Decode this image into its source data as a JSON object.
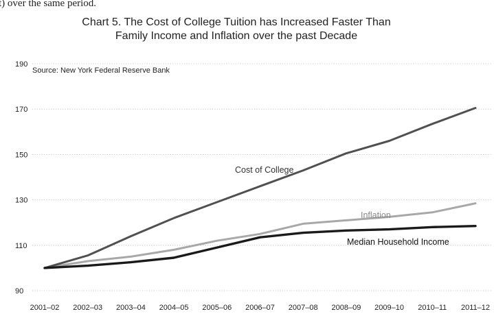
{
  "page_fragment": {
    "text": "t) over the same period."
  },
  "chart_data": {
    "type": "line",
    "title_lines": [
      "Chart 5. The Cost of College Tuition has Increased Faster Than",
      "Family Income and Inflation over the past Decade"
    ],
    "source": "Source: New York Federal Reserve Bank",
    "xlabel": "",
    "ylabel": "",
    "categories": [
      "2001–02",
      "2002–03",
      "2003–04",
      "2004–05",
      "2005–06",
      "2006–07",
      "2007–08",
      "2008–09",
      "2009–10",
      "2010–11",
      "2011–12"
    ],
    "yticks": [
      90,
      110,
      130,
      150,
      170,
      190
    ],
    "ylim": [
      90,
      190
    ],
    "grid": "horizontal dotted",
    "series": [
      {
        "name": "Cost of College",
        "color": "#505050",
        "values": [
          100,
          105.5,
          114,
          122,
          129,
          136,
          143,
          150.5,
          156,
          163.5,
          170.5
        ]
      },
      {
        "name": "Inflation",
        "color": "#a8a8a8",
        "values": [
          100,
          103,
          105,
          108,
          112,
          115,
          119.5,
          121,
          122.5,
          124.5,
          128.5
        ]
      },
      {
        "name": "Median Household Income",
        "color": "#1a1a1a",
        "values": [
          100,
          101,
          102.5,
          104.5,
          109,
          113.5,
          115.5,
          116.5,
          117,
          118,
          118.5
        ]
      }
    ]
  }
}
